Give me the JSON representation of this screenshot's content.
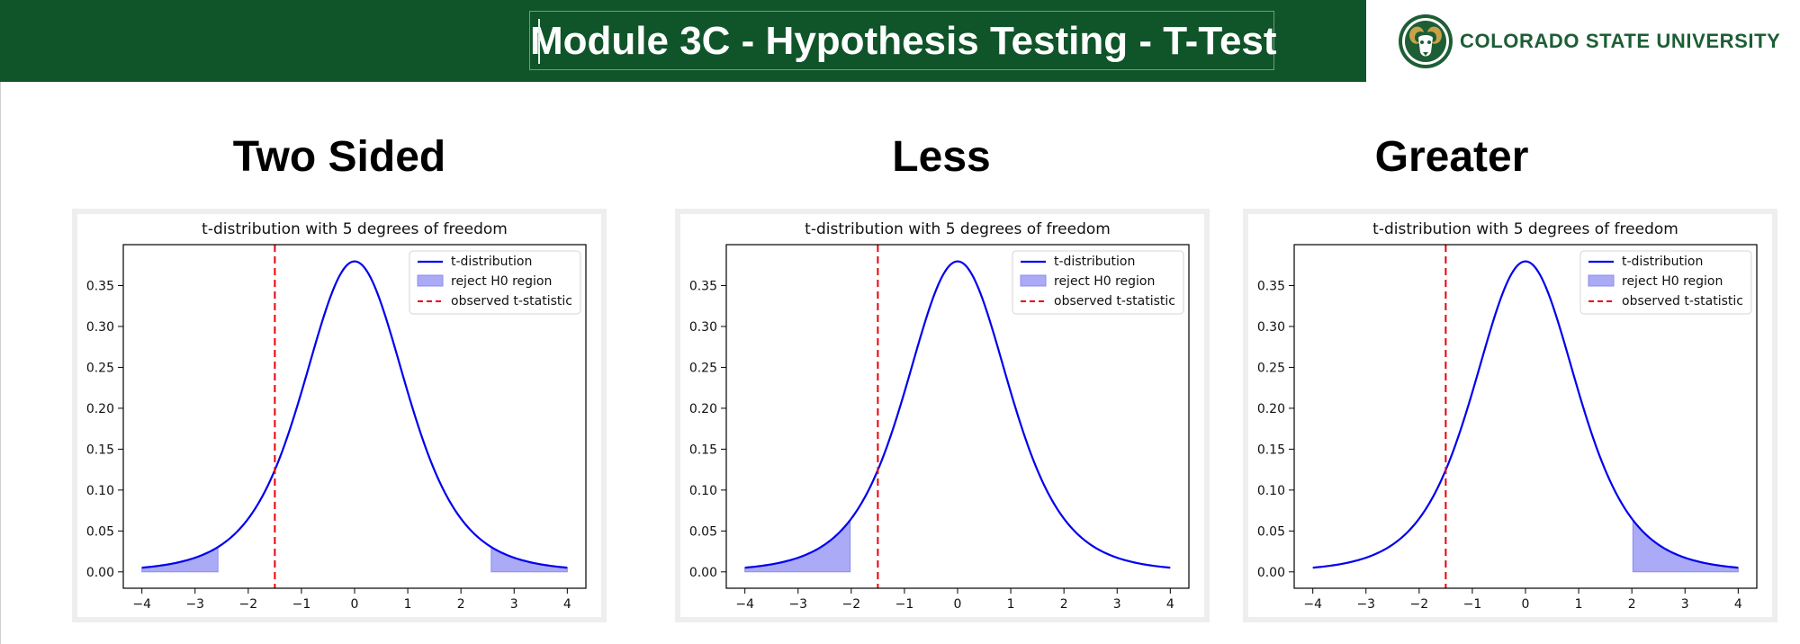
{
  "header": {
    "title": "Module  3C - Hypothesis Testing - T-Test",
    "background_color": "#10542a"
  },
  "logo": {
    "text": "COLORADO STATE UNIVERSITY",
    "icon": "ram-head-icon",
    "color": "#1d5e35"
  },
  "sections": [
    {
      "heading": "Two Sided"
    },
    {
      "heading": "Less"
    },
    {
      "heading": "Greater"
    }
  ],
  "chart_data": [
    {
      "type": "line",
      "title": "t-distribution with 5 degrees of freedom",
      "degrees_of_freedom": 5,
      "xlim": [
        -4,
        4
      ],
      "ylim": [
        -0.02,
        0.4
      ],
      "x_ticks": [
        -4,
        -3,
        -2,
        -1,
        0,
        1,
        2,
        3,
        4
      ],
      "x_tick_labels": [
        "−4",
        "−3",
        "−2",
        "−1",
        "0",
        "1",
        "2",
        "3",
        "4"
      ],
      "y_ticks": [
        0,
        0.05,
        0.1,
        0.15,
        0.2,
        0.25,
        0.3,
        0.35
      ],
      "y_tick_labels": [
        "0.00",
        "0.05",
        "0.10",
        "0.15",
        "0.20",
        "0.25",
        "0.30",
        "0.35"
      ],
      "legend": [
        "t-distribution",
        "reject H0 region",
        "observed t-statistic"
      ],
      "legend_position": "upper-right",
      "observed_t_statistic": -1.5,
      "reject_regions": [
        [
          -4,
          -2.57
        ],
        [
          2.57,
          4
        ]
      ],
      "colors": {
        "curve": "#0000ee",
        "fill": "#aaaaf6",
        "observed": "#e8000b"
      }
    },
    {
      "type": "line",
      "title": "t-distribution with 5 degrees of freedom",
      "degrees_of_freedom": 5,
      "xlim": [
        -4,
        4
      ],
      "ylim": [
        -0.02,
        0.4
      ],
      "x_ticks": [
        -4,
        -3,
        -2,
        -1,
        0,
        1,
        2,
        3,
        4
      ],
      "x_tick_labels": [
        "−4",
        "−3",
        "−2",
        "−1",
        "0",
        "1",
        "2",
        "3",
        "4"
      ],
      "y_ticks": [
        0,
        0.05,
        0.1,
        0.15,
        0.2,
        0.25,
        0.3,
        0.35
      ],
      "y_tick_labels": [
        "0.00",
        "0.05",
        "0.10",
        "0.15",
        "0.20",
        "0.25",
        "0.30",
        "0.35"
      ],
      "legend": [
        "t-distribution",
        "reject H0 region",
        "observed t-statistic"
      ],
      "legend_position": "upper-right",
      "observed_t_statistic": -1.5,
      "reject_regions": [
        [
          -4,
          -2.02
        ]
      ],
      "colors": {
        "curve": "#0000ee",
        "fill": "#aaaaf6",
        "observed": "#e8000b"
      }
    },
    {
      "type": "line",
      "title": "t-distribution with 5 degrees of freedom",
      "degrees_of_freedom": 5,
      "xlim": [
        -4,
        4
      ],
      "ylim": [
        -0.02,
        0.4
      ],
      "x_ticks": [
        -4,
        -3,
        -2,
        -1,
        0,
        1,
        2,
        3,
        4
      ],
      "x_tick_labels": [
        "−4",
        "−3",
        "−2",
        "−1",
        "0",
        "1",
        "2",
        "3",
        "4"
      ],
      "y_ticks": [
        0,
        0.05,
        0.1,
        0.15,
        0.2,
        0.25,
        0.3,
        0.35
      ],
      "y_tick_labels": [
        "0.00",
        "0.05",
        "0.10",
        "0.15",
        "0.20",
        "0.25",
        "0.30",
        "0.35"
      ],
      "legend": [
        "t-distribution",
        "reject H0 region",
        "observed t-statistic"
      ],
      "legend_position": "upper-right",
      "observed_t_statistic": -1.5,
      "reject_regions": [
        [
          2.02,
          4
        ]
      ],
      "colors": {
        "curve": "#0000ee",
        "fill": "#aaaaf6",
        "observed": "#e8000b"
      }
    }
  ]
}
